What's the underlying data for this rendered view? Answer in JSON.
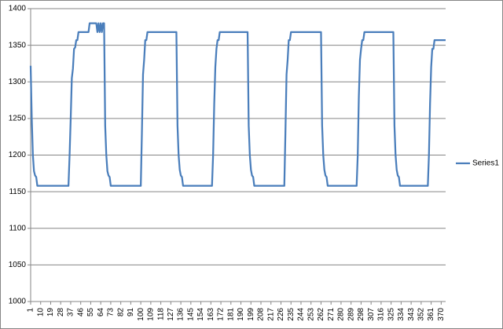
{
  "chart_data": {
    "type": "line",
    "series": [
      {
        "name": "Series1",
        "color": "#4a7ebb",
        "x": [
          1,
          2,
          3,
          4,
          5,
          6,
          7,
          35,
          36,
          37,
          38,
          39,
          40,
          41,
          42,
          43,
          44,
          53,
          54,
          60,
          61,
          62,
          63,
          64,
          65,
          66,
          67,
          68,
          69,
          70,
          71,
          72,
          73,
          100,
          101,
          102,
          103,
          104,
          105,
          106,
          132,
          133,
          134,
          135,
          136,
          137,
          138,
          164,
          165,
          166,
          167,
          168,
          169,
          170,
          171,
          196,
          197,
          198,
          199,
          200,
          201,
          202,
          229,
          230,
          231,
          232,
          233,
          234,
          235,
          262,
          263,
          264,
          265,
          266,
          267,
          268,
          294,
          295,
          296,
          297,
          298,
          299,
          300,
          301,
          327,
          328,
          329,
          330,
          331,
          332,
          333,
          358,
          359,
          360,
          361,
          362,
          363,
          364,
          374
        ],
        "values": [
          1322,
          1250,
          1200,
          1178,
          1172,
          1170,
          1158,
          1158,
          1200,
          1250,
          1305,
          1318,
          1345,
          1347,
          1357,
          1357,
          1368,
          1368,
          1380,
          1380,
          1368,
          1380,
          1368,
          1380,
          1368,
          1380,
          1380,
          1240,
          1200,
          1178,
          1172,
          1170,
          1158,
          1158,
          1230,
          1310,
          1330,
          1357,
          1357,
          1368,
          1368,
          1240,
          1200,
          1180,
          1172,
          1170,
          1158,
          1158,
          1200,
          1270,
          1320,
          1345,
          1357,
          1357,
          1368,
          1368,
          1240,
          1200,
          1180,
          1172,
          1170,
          1158,
          1158,
          1230,
          1310,
          1330,
          1357,
          1357,
          1368,
          1368,
          1240,
          1200,
          1180,
          1172,
          1170,
          1158,
          1158,
          1200,
          1280,
          1330,
          1345,
          1357,
          1357,
          1368,
          1368,
          1240,
          1200,
          1180,
          1172,
          1170,
          1158,
          1158,
          1200,
          1270,
          1320,
          1345,
          1345,
          1357,
          1357
        ]
      }
    ],
    "xlim": [
      1,
      374
    ],
    "xticks": [
      1,
      10,
      19,
      28,
      37,
      46,
      55,
      64,
      73,
      82,
      91,
      100,
      109,
      118,
      127,
      136,
      145,
      154,
      163,
      172,
      181,
      190,
      199,
      208,
      217,
      226,
      235,
      244,
      253,
      262,
      271,
      280,
      289,
      298,
      307,
      316,
      325,
      334,
      343,
      352,
      361,
      370
    ],
    "ylim": [
      1000,
      1400
    ],
    "yticks": [
      1000,
      1050,
      1100,
      1150,
      1200,
      1250,
      1300,
      1350,
      1400
    ],
    "grid": true,
    "legend": "right"
  }
}
